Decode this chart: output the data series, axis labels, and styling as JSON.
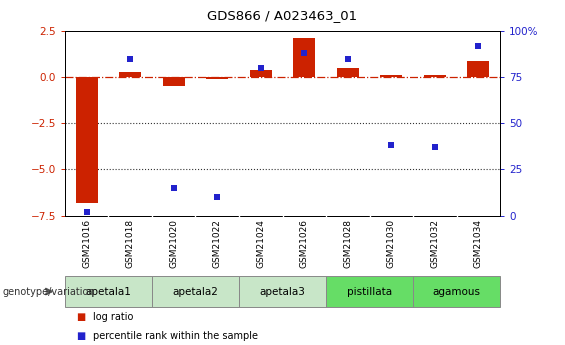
{
  "title": "GDS866 / A023463_01",
  "samples": [
    "GSM21016",
    "GSM21018",
    "GSM21020",
    "GSM21022",
    "GSM21024",
    "GSM21026",
    "GSM21028",
    "GSM21030",
    "GSM21032",
    "GSM21034"
  ],
  "log_ratio": [
    -6.8,
    0.3,
    -0.5,
    -0.1,
    0.4,
    2.1,
    0.5,
    0.1,
    0.1,
    0.9
  ],
  "percentile_rank": [
    2,
    85,
    15,
    10,
    80,
    88,
    85,
    38,
    37,
    92
  ],
  "ylim_left": [
    -7.5,
    2.5
  ],
  "ylim_right": [
    0,
    100
  ],
  "yticks_left": [
    2.5,
    0,
    -2.5,
    -5.0,
    -7.5
  ],
  "yticks_right": [
    100,
    75,
    50,
    25,
    0
  ],
  "hlines_dotted": [
    -2.5,
    -5.0
  ],
  "groups": [
    {
      "label": "apetala1",
      "samples": [
        "GSM21016",
        "GSM21018"
      ],
      "color": "#c8e6c8"
    },
    {
      "label": "apetala2",
      "samples": [
        "GSM21020",
        "GSM21022"
      ],
      "color": "#c8e6c8"
    },
    {
      "label": "apetala3",
      "samples": [
        "GSM21024",
        "GSM21026"
      ],
      "color": "#c8e6c8"
    },
    {
      "label": "pistillata",
      "samples": [
        "GSM21028",
        "GSM21030"
      ],
      "color": "#66dd66"
    },
    {
      "label": "agamous",
      "samples": [
        "GSM21032",
        "GSM21034"
      ],
      "color": "#66dd66"
    }
  ],
  "bar_color_red": "#cc2200",
  "bar_color_blue": "#2222cc",
  "zero_line_color": "#cc2200",
  "dotted_line_color": "#333333",
  "background_color": "#ffffff",
  "plot_bg_color": "#ffffff",
  "tick_bg_color": "#c0c0c0",
  "left_axis_color": "#cc2200",
  "right_axis_color": "#2222cc",
  "genotype_label": "genotype/variation",
  "legend_log_ratio": "log ratio",
  "legend_percentile": "percentile rank within the sample"
}
